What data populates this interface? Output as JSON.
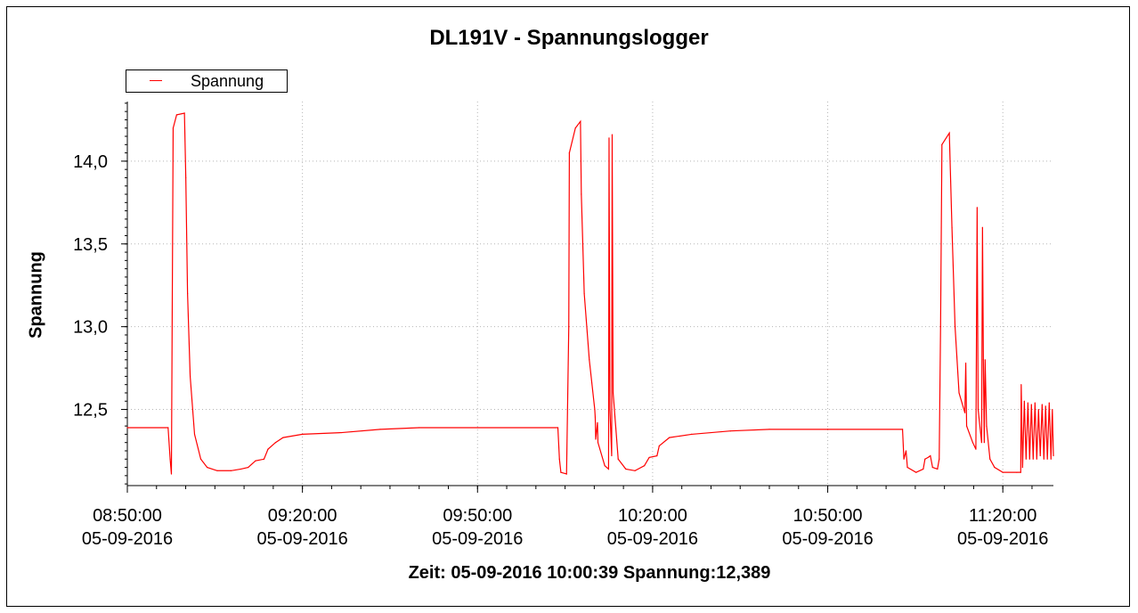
{
  "window": {
    "title": "DL191V - Spannungslogger",
    "status_text": "Zeit: 05-09-2016 10:00:39 Spannung:12,389"
  },
  "chart_data": {
    "type": "line",
    "title": "DL191V - Spannungslogger",
    "ylabel": "Spannung",
    "xlabel": "",
    "grid": true,
    "legend": "top-left",
    "x_unit": "time (05-09-2016)",
    "xlim": [
      "08:50:00",
      "11:28:40"
    ],
    "ylim": [
      12.04,
      14.36
    ],
    "y_ticks": [
      "12,5",
      "13,0",
      "13,5",
      "14,0"
    ],
    "x_ticks": [
      {
        "time": "08:50:00",
        "date": "05-09-2016"
      },
      {
        "time": "09:20:00",
        "date": "05-09-2016"
      },
      {
        "time": "09:50:00",
        "date": "05-09-2016"
      },
      {
        "time": "10:20:00",
        "date": "05-09-2016"
      },
      {
        "time": "10:50:00",
        "date": "05-09-2016"
      },
      {
        "time": "11:20:00",
        "date": "05-09-2016"
      }
    ],
    "series": [
      {
        "name": "Spannung",
        "color": "#ff0000",
        "points": [
          [
            "08:50:00",
            12.39
          ],
          [
            "08:56:59",
            12.39
          ],
          [
            "08:57:20",
            12.2
          ],
          [
            "08:57:33",
            12.11
          ],
          [
            "08:57:51",
            14.2
          ],
          [
            "08:58:27",
            14.28
          ],
          [
            "08:59:47",
            14.29
          ],
          [
            "09:00:01",
            13.9
          ],
          [
            "09:00:19",
            13.2
          ],
          [
            "09:00:46",
            12.7
          ],
          [
            "09:01:31",
            12.35
          ],
          [
            "09:02:35",
            12.2
          ],
          [
            "09:03:41",
            12.15
          ],
          [
            "09:05:24",
            12.13
          ],
          [
            "09:07:46",
            12.13
          ],
          [
            "09:09:28",
            12.14
          ],
          [
            "09:10:42",
            12.15
          ],
          [
            "09:11:58",
            12.19
          ],
          [
            "09:13:25",
            12.2
          ],
          [
            "09:14:06",
            12.26
          ],
          [
            "09:15:23",
            12.3
          ],
          [
            "09:16:41",
            12.33
          ],
          [
            "09:20:00",
            12.35
          ],
          [
            "09:26:40",
            12.36
          ],
          [
            "09:33:20",
            12.38
          ],
          [
            "09:40:00",
            12.39
          ],
          [
            "09:50:00",
            12.39
          ],
          [
            "10:03:46",
            12.39
          ],
          [
            "10:04:02",
            12.2
          ],
          [
            "10:04:17",
            12.12
          ],
          [
            "10:05:15",
            12.11
          ],
          [
            "10:05:38",
            13.0
          ],
          [
            "10:05:44",
            14.05
          ],
          [
            "10:06:46",
            14.2
          ],
          [
            "10:07:38",
            14.24
          ],
          [
            "10:07:47",
            13.8
          ],
          [
            "10:08:17",
            13.2
          ],
          [
            "10:09:09",
            12.8
          ],
          [
            "10:10:05",
            12.5
          ],
          [
            "10:10:10",
            12.45
          ],
          [
            "10:10:15",
            12.32
          ],
          [
            "10:10:33",
            12.42
          ],
          [
            "10:10:38",
            12.3
          ],
          [
            "10:11:48",
            12.16
          ],
          [
            "10:12:27",
            12.14
          ],
          [
            "10:12:32",
            14.14
          ],
          [
            "10:12:41",
            12.5
          ],
          [
            "10:12:59",
            12.22
          ],
          [
            "10:13:04",
            14.16
          ],
          [
            "10:13:14",
            12.6
          ],
          [
            "10:14:06",
            12.2
          ],
          [
            "10:15:24",
            12.14
          ],
          [
            "10:16:59",
            12.13
          ],
          [
            "10:18:35",
            12.16
          ],
          [
            "10:19:25",
            12.21
          ],
          [
            "10:20:45",
            12.22
          ],
          [
            "10:21:08",
            12.28
          ],
          [
            "10:22:52",
            12.33
          ],
          [
            "10:26:40",
            12.35
          ],
          [
            "10:33:20",
            12.37
          ],
          [
            "10:40:00",
            12.38
          ],
          [
            "10:50:00",
            12.38
          ],
          [
            "11:02:49",
            12.38
          ],
          [
            "11:03:03",
            12.2
          ],
          [
            "11:03:25",
            12.25
          ],
          [
            "11:03:39",
            12.15
          ],
          [
            "11:05:08",
            12.12
          ],
          [
            "11:06:22",
            12.14
          ],
          [
            "11:06:40",
            12.2
          ],
          [
            "11:07:12",
            12.21
          ],
          [
            "11:07:35",
            12.22
          ],
          [
            "11:07:58",
            12.15
          ],
          [
            "11:08:48",
            12.14
          ],
          [
            "11:09:06",
            12.2
          ],
          [
            "11:09:20",
            13.0
          ],
          [
            "11:09:34",
            14.1
          ],
          [
            "11:10:50",
            14.17
          ],
          [
            "11:11:17",
            13.6
          ],
          [
            "11:11:49",
            13.0
          ],
          [
            "11:12:30",
            12.6
          ],
          [
            "11:13:30",
            12.48
          ],
          [
            "11:13:39",
            12.78
          ],
          [
            "11:13:48",
            12.4
          ],
          [
            "11:14:51",
            12.3
          ],
          [
            "11:15:23",
            12.26
          ],
          [
            "11:15:36",
            13.72
          ],
          [
            "11:15:46",
            12.5
          ],
          [
            "11:16:22",
            12.3
          ],
          [
            "11:16:31",
            13.6
          ],
          [
            "11:16:40",
            12.8
          ],
          [
            "11:16:49",
            12.3
          ],
          [
            "11:16:58",
            12.8
          ],
          [
            "11:17:13",
            12.4
          ],
          [
            "11:17:48",
            12.2
          ],
          [
            "11:18:35",
            12.15
          ],
          [
            "11:20:00",
            12.12
          ],
          [
            "11:22:23",
            12.12
          ],
          [
            "11:23:04",
            12.12
          ],
          [
            "11:23:09",
            12.65
          ],
          [
            "11:23:23",
            12.15
          ],
          [
            "11:23:41",
            12.55
          ],
          [
            "11:23:59",
            12.2
          ],
          [
            "11:24:18",
            12.54
          ],
          [
            "11:24:36",
            12.2
          ],
          [
            "11:24:54",
            12.53
          ],
          [
            "11:25:12",
            12.2
          ],
          [
            "11:25:31",
            12.54
          ],
          [
            "11:25:49",
            12.2
          ],
          [
            "11:26:07",
            12.5
          ],
          [
            "11:26:25",
            12.22
          ],
          [
            "11:26:44",
            12.53
          ],
          [
            "11:27:02",
            12.2
          ],
          [
            "11:27:20",
            12.52
          ],
          [
            "11:27:38",
            12.2
          ],
          [
            "11:27:57",
            12.54
          ],
          [
            "11:28:15",
            12.2
          ],
          [
            "11:28:29",
            12.5
          ],
          [
            "11:28:40",
            12.22
          ]
        ]
      }
    ]
  }
}
